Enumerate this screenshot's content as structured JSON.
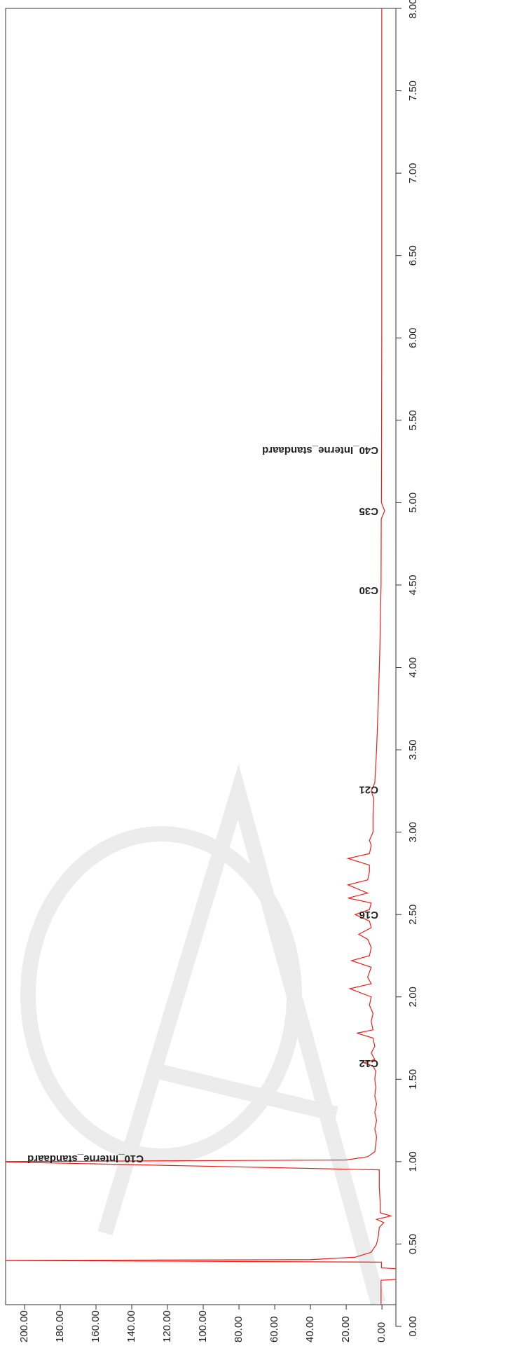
{
  "chart_data": {
    "type": "line",
    "orientation": "rotated",
    "xlim": [
      0,
      8
    ],
    "ylim": [
      -7.8,
      210.6
    ],
    "xticks": [
      {
        "value": 0,
        "label": "0.00"
      },
      {
        "value": 0.5,
        "label": "0.50"
      },
      {
        "value": 1,
        "label": "1.00"
      },
      {
        "value": 1.5,
        "label": "1.50"
      },
      {
        "value": 2,
        "label": "2.00"
      },
      {
        "value": 2.5,
        "label": "2.50"
      },
      {
        "value": 3,
        "label": "3.00"
      },
      {
        "value": 3.5,
        "label": "3.50"
      },
      {
        "value": 4,
        "label": "4.00"
      },
      {
        "value": 4.5,
        "label": "4.50"
      },
      {
        "value": 5,
        "label": "5.00"
      },
      {
        "value": 5.5,
        "label": "5.50"
      },
      {
        "value": 6,
        "label": "6.00"
      },
      {
        "value": 6.5,
        "label": "6.50"
      },
      {
        "value": 7,
        "label": "7.00"
      },
      {
        "value": 7.5,
        "label": "7.50"
      },
      {
        "value": 8,
        "label": "8.00"
      }
    ],
    "yticks": [
      {
        "value": 0,
        "label": "0.00"
      },
      {
        "value": 20,
        "label": "20.00"
      },
      {
        "value": 40,
        "label": "40.00"
      },
      {
        "value": 60,
        "label": "60.00"
      },
      {
        "value": 80,
        "label": "80.00"
      },
      {
        "value": 100,
        "label": "100.00"
      },
      {
        "value": 120,
        "label": "120.00"
      },
      {
        "value": 140,
        "label": "140.00"
      },
      {
        "value": 160,
        "label": "160.00"
      },
      {
        "value": 180,
        "label": "180.00"
      },
      {
        "value": 200,
        "label": "200.00"
      }
    ],
    "series": [
      {
        "color": "#e8201c",
        "x": [
          0.13,
          0.28,
          0.285,
          0.35,
          0.355,
          0.39,
          0.4,
          0.405,
          0.42,
          0.45,
          0.5,
          0.55,
          0.6,
          0.63,
          0.65,
          0.67,
          0.69,
          0.75,
          0.85,
          0.95,
          1.0,
          1.01,
          1.03,
          1.06,
          1.1,
          1.15,
          1.2,
          1.25,
          1.3,
          1.35,
          1.4,
          1.45,
          1.5,
          1.55,
          1.58,
          1.6,
          1.62,
          1.66,
          1.7,
          1.75,
          1.78,
          1.8,
          1.85,
          1.9,
          1.95,
          2.0,
          2.05,
          2.08,
          2.12,
          2.18,
          2.22,
          2.25,
          2.3,
          2.35,
          2.38,
          2.42,
          2.46,
          2.5,
          2.53,
          2.57,
          2.6,
          2.63,
          2.68,
          2.71,
          2.76,
          2.8,
          2.84,
          2.87,
          2.92,
          2.95,
          3.0,
          3.1,
          3.2,
          3.25,
          3.3,
          3.5,
          3.8,
          4.1,
          4.5,
          4.9,
          4.95,
          5.0,
          5.5,
          6.0,
          7.0,
          8.0
        ],
        "values": [
          0.5,
          0.5,
          -8,
          -8,
          0.3,
          0.3,
          220,
          40,
          15,
          6,
          3,
          2,
          1.5,
          -1,
          3,
          -5,
          1,
          1,
          1.5,
          1.5,
          220,
          20,
          8,
          4,
          3.5,
          3,
          4,
          3,
          4,
          3,
          4,
          3.5,
          4,
          3.5,
          5,
          10,
          4,
          6,
          4,
          5,
          14,
          5,
          6,
          5,
          7,
          6,
          18,
          6,
          8,
          6,
          17,
          7,
          6,
          8,
          13,
          6,
          7,
          15,
          7,
          6,
          19,
          8,
          19,
          8,
          7,
          7,
          19,
          7,
          6,
          7,
          5,
          5,
          4.5,
          6,
          4,
          3,
          2,
          1.2,
          0.5,
          0.4,
          -1.5,
          0.3,
          0.2,
          0.1,
          0.1,
          0.1
        ]
      }
    ],
    "annotations": [
      {
        "text": "C10_Interne_standaard",
        "x": 1.02
      },
      {
        "text": "C12",
        "x": 1.6
      },
      {
        "text": "C16",
        "x": 2.5
      },
      {
        "text": "C21",
        "x": 3.26
      },
      {
        "text": "C30",
        "x": 4.47
      },
      {
        "text": "C35",
        "x": 4.95
      },
      {
        "text": "C40_Interne_standaard",
        "x": 5.32
      }
    ]
  }
}
